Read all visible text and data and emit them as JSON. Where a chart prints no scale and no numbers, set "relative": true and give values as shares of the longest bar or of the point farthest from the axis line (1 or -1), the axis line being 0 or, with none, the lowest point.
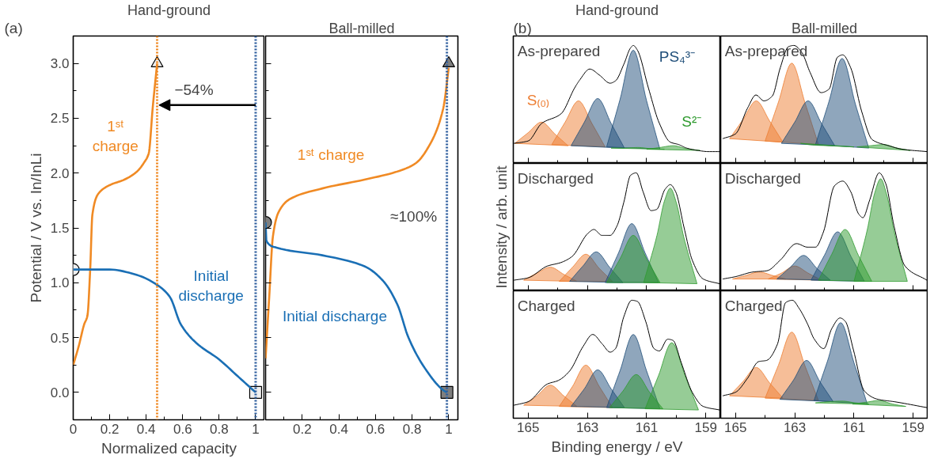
{
  "chart_data": [
    {
      "type": "line",
      "title": "Hand-ground",
      "xlabel": "Normalized capacity",
      "ylabel": "Potential / V vs. In/InLi",
      "xlim": [
        0,
        1.05
      ],
      "ylim": [
        -0.25,
        3.25
      ],
      "xticks": [
        0,
        0.2,
        0.4,
        0.6,
        0.8,
        1
      ],
      "yticks": [
        {
          "value": 0,
          "label": "0.0"
        },
        {
          "value": 0.5,
          "label": "0.5"
        },
        {
          "value": 1,
          "label": "1.0"
        },
        {
          "value": 1.5,
          "label": "1.5"
        },
        {
          "value": 2,
          "label": "2.0"
        },
        {
          "value": 2.5,
          "label": "2.5"
        },
        {
          "value": 3,
          "label": "3.0"
        }
      ],
      "annotations": [
        "(a)",
        "−54%"
      ],
      "ref_lines": [
        {
          "axis": "x",
          "value": 0.46,
          "color": "#f08a24",
          "line_style": "dotted"
        },
        {
          "axis": "x",
          "value": 1.0,
          "color": "#2e5e9e",
          "line_style": "dotted"
        }
      ],
      "series": [
        {
          "name": "1ˢᵗ charge",
          "color": "#f08a24",
          "x": [
            0,
            0.03,
            0.06,
            0.078,
            0.093,
            0.105,
            0.137,
            0.2,
            0.28,
            0.347,
            0.39,
            0.414,
            0.436,
            0.46
          ],
          "values": [
            0.25,
            0.42,
            0.62,
            0.7,
            1.12,
            1.62,
            1.81,
            1.89,
            1.94,
            2.01,
            2.1,
            2.18,
            2.6,
            3.0
          ]
        },
        {
          "name": "Initial discharge",
          "color": "#1a6fb5",
          "x": [
            0,
            0.03,
            0.2,
            0.35,
            0.46,
            0.53,
            0.59,
            0.675,
            0.8,
            0.9,
            1.0
          ],
          "values": [
            1.12,
            1.12,
            1.12,
            1.07,
            0.98,
            0.87,
            0.62,
            0.45,
            0.3,
            0.15,
            0.0
          ]
        },
        {
          "type": "scatter",
          "marker": "circle",
          "color": "#eeeeee",
          "x": [
            0
          ],
          "values": [
            1.12
          ]
        },
        {
          "type": "scatter",
          "marker": "triangle",
          "color": "#eeeeee",
          "x": [
            0.46
          ],
          "values": [
            3.0
          ]
        },
        {
          "type": "scatter",
          "marker": "square",
          "color": "#eeeeee",
          "x": [
            1.0
          ],
          "values": [
            0.0
          ]
        }
      ]
    },
    {
      "type": "line",
      "title": "Ball-milled",
      "xlim": [
        0,
        1.05
      ],
      "ylim": [
        -0.25,
        3.25
      ],
      "xticks": [
        {
          "value": 0,
          "label": null
        },
        0.2,
        0.4,
        0.6,
        0.8,
        1
      ],
      "yticks": [
        {
          "value": 0,
          "label": null
        },
        {
          "value": 0.5,
          "label": null
        },
        {
          "value": 1,
          "label": null
        },
        {
          "value": 1.5,
          "label": null
        },
        {
          "value": 2,
          "label": null
        },
        {
          "value": 2.5,
          "label": null
        },
        {
          "value": 3,
          "label": null
        }
      ],
      "tick_labels": "x",
      "annotations": [
        "≈100%"
      ],
      "ref_lines": [
        {
          "axis": "x",
          "value": 0.99,
          "color": "#2e5e9e",
          "line_style": "dotted"
        }
      ],
      "series": [
        {
          "name": "1ˢᵗ charge",
          "color": "#f08a24",
          "x": [
            0,
            0.02,
            0.04,
            0.07,
            0.13,
            0.31,
            0.54,
            0.73,
            0.82,
            0.9,
            0.97,
            1.0
          ],
          "values": [
            0.31,
            0.87,
            1.42,
            1.64,
            1.76,
            1.86,
            1.94,
            2.02,
            2.09,
            2.27,
            2.59,
            2.96
          ]
        },
        {
          "name": "Initial discharge",
          "color": "#1a6fb5",
          "x": [
            0,
            0.005,
            0.06,
            0.31,
            0.54,
            0.64,
            0.72,
            0.78,
            0.87,
            0.97,
            0.99
          ],
          "values": [
            1.55,
            1.38,
            1.32,
            1.25,
            1.15,
            1.02,
            0.8,
            0.5,
            0.22,
            0.02,
            0.0
          ]
        },
        {
          "type": "scatter",
          "marker": "circle",
          "color": "#7f7f7f",
          "x": [
            0
          ],
          "values": [
            1.55
          ]
        },
        {
          "type": "scatter",
          "marker": "triangle",
          "color": "#7f7f7f",
          "x": [
            1.0
          ],
          "values": [
            3.0
          ]
        },
        {
          "type": "scatter",
          "marker": "square",
          "color": "#7f7f7f",
          "x": [
            0.99
          ],
          "values": [
            0.0
          ]
        }
      ]
    },
    {
      "type": "area",
      "relative": true,
      "title": "As-prepared",
      "subtitle": "Hand-ground",
      "xlim": [
        165.5,
        158.5
      ],
      "xticks": [
        165,
        163,
        161,
        159
      ],
      "tick_labels": false,
      "annotations": [
        "(b)"
      ],
      "series": [
        {
          "type": "line",
          "color": "#000000",
          "x": [
            165.48,
            165,
            164.54,
            163.89,
            163.43,
            163.25,
            162.92,
            162.6,
            162.23,
            162.05,
            161.77,
            161.54,
            161.45,
            161.31,
            160.94,
            160.57,
            160.2,
            159.92,
            159.65,
            159.28,
            158.91,
            158.54
          ],
          "values": [
            0.17,
            0.19,
            0.34,
            0.42,
            0.64,
            0.71,
            0.8,
            0.75,
            0.68,
            0.7,
            0.84,
            0.98,
            1.0,
            0.96,
            0.64,
            0.34,
            0.18,
            0.16,
            0.13,
            0.11,
            0.1,
            0.1
          ]
        },
        {
          "name": "S₍₀₎",
          "color": "#ed7d31",
          "x": [
            165.45,
            165.0,
            164.55,
            164.1,
            163.65
          ],
          "values": [
            0.17,
            0.26,
            0.35,
            0.25,
            0.15
          ]
        },
        {
          "color": "#ed7d31",
          "x": [
            164.2,
            163.75,
            163.3,
            162.85,
            162.4
          ],
          "values": [
            0.16,
            0.35,
            0.53,
            0.34,
            0.14
          ]
        },
        {
          "color": "#1f4e79",
          "x": [
            163.55,
            163.1,
            162.65,
            162.2,
            161.75
          ],
          "values": [
            0.15,
            0.35,
            0.55,
            0.34,
            0.13
          ]
        },
        {
          "name": "PS₄³⁻",
          "color": "#1f4e79",
          "x": [
            162.35,
            161.9,
            161.45,
            161.0,
            160.55
          ],
          "values": [
            0.14,
            0.54,
            0.96,
            0.53,
            0.12
          ]
        },
        {
          "color": "#2e9a2e",
          "x": [
            162.2,
            161.75,
            161.3,
            160.85,
            160.4
          ],
          "values": [
            0.13,
            0.13,
            0.135,
            0.125,
            0.12
          ]
        },
        {
          "name": "S²⁻",
          "color": "#2e9a2e",
          "x": [
            161.0,
            160.55,
            160.1,
            159.65,
            159.2
          ],
          "values": [
            0.12,
            0.135,
            0.15,
            0.125,
            0.11
          ]
        }
      ]
    },
    {
      "type": "area",
      "relative": true,
      "title": "As-prepared",
      "subtitle": "Ball-milled",
      "xlim": [
        165.5,
        158.5
      ],
      "xticks": [
        165,
        163,
        161,
        159
      ],
      "tick_labels": false,
      "series": [
        {
          "type": "line",
          "color": "#000000",
          "x": [
            165.43,
            165.0,
            164.59,
            164.31,
            164.04,
            163.76,
            163.49,
            163.21,
            163.03,
            162.76,
            162.48,
            162.11,
            161.84,
            161.56,
            161.38,
            161.11,
            160.74,
            160.38,
            159.83,
            159.37,
            158.54
          ],
          "values": [
            0.21,
            0.25,
            0.47,
            0.58,
            0.53,
            0.57,
            0.81,
            0.99,
            1.0,
            0.94,
            0.77,
            0.6,
            0.63,
            0.9,
            0.92,
            0.81,
            0.44,
            0.2,
            0.15,
            0.12,
            0.1
          ]
        },
        {
          "color": "#ed7d31",
          "x": [
            165.2,
            164.75,
            164.3,
            163.85,
            163.4
          ],
          "values": [
            0.21,
            0.37,
            0.53,
            0.36,
            0.18
          ]
        },
        {
          "color": "#ed7d31",
          "x": [
            164.0,
            163.55,
            163.1,
            162.65,
            162.2
          ],
          "values": [
            0.19,
            0.52,
            0.85,
            0.51,
            0.16
          ]
        },
        {
          "color": "#1f4e79",
          "x": [
            163.45,
            163.0,
            162.55,
            162.1,
            161.65
          ],
          "values": [
            0.17,
            0.35,
            0.53,
            0.34,
            0.15
          ]
        },
        {
          "color": "#1f4e79",
          "x": [
            162.3,
            161.85,
            161.4,
            160.95,
            160.5
          ],
          "values": [
            0.16,
            0.52,
            0.89,
            0.5,
            0.13
          ]
        },
        {
          "color": "#2e9a2e",
          "x": [
            162.8,
            162.35,
            161.9,
            161.45,
            161.0
          ],
          "values": [
            0.17,
            0.155,
            0.15,
            0.145,
            0.14
          ]
        },
        {
          "color": "#2e9a2e",
          "x": [
            160.9,
            160.45,
            160.0,
            159.55,
            159.1
          ],
          "values": [
            0.14,
            0.15,
            0.16,
            0.13,
            0.11
          ]
        }
      ]
    },
    {
      "type": "area",
      "relative": true,
      "title": "Discharged",
      "ylabel": "Intensity / arb. unit",
      "xlim": [
        165.5,
        158.5
      ],
      "xticks": [
        165,
        163,
        161,
        159
      ],
      "tick_labels": false,
      "series": [
        {
          "type": "line",
          "color": "#000000",
          "x": [
            165.48,
            165,
            164.35,
            163.89,
            163.52,
            162.97,
            162.78,
            162.51,
            162.23,
            162.0,
            161.77,
            161.54,
            161.35,
            161.12,
            160.85,
            160.66,
            160.38,
            160.2,
            160.02,
            159.74,
            159.46,
            159.09,
            158.54
          ],
          "values": [
            0.09,
            0.11,
            0.21,
            0.24,
            0.29,
            0.49,
            0.52,
            0.47,
            0.47,
            0.55,
            0.75,
            0.98,
            1.0,
            0.84,
            0.68,
            0.69,
            0.86,
            0.9,
            0.84,
            0.54,
            0.26,
            0.1,
            0.06
          ]
        },
        {
          "color": "#ed7d31",
          "x": [
            165.15,
            164.7,
            164.25,
            163.8,
            163.35
          ],
          "values": [
            0.09,
            0.15,
            0.2,
            0.14,
            0.08
          ]
        },
        {
          "color": "#ed7d31",
          "x": [
            163.95,
            163.5,
            163.05,
            162.6,
            162.15
          ],
          "values": [
            0.08,
            0.2,
            0.31,
            0.19,
            0.08
          ]
        },
        {
          "color": "#1f4e79",
          "x": [
            163.6,
            163.15,
            162.7,
            162.25,
            161.8
          ],
          "values": [
            0.08,
            0.21,
            0.33,
            0.2,
            0.07
          ]
        },
        {
          "color": "#1f4e79",
          "x": [
            162.4,
            161.95,
            161.5,
            161.05,
            160.6
          ],
          "values": [
            0.07,
            0.32,
            0.57,
            0.32,
            0.07
          ]
        },
        {
          "color": "#2e9a2e",
          "x": [
            162.35,
            161.9,
            161.45,
            161.0,
            160.55
          ],
          "values": [
            0.07,
            0.27,
            0.47,
            0.27,
            0.07
          ]
        },
        {
          "color": "#2e9a2e",
          "x": [
            161.1,
            160.65,
            160.4,
            160.2,
            160.0,
            159.75,
            159.3
          ],
          "values": [
            0.07,
            0.47,
            0.76,
            0.87,
            0.75,
            0.46,
            0.06
          ]
        }
      ]
    },
    {
      "type": "area",
      "relative": true,
      "title": "Discharged",
      "xlim": [
        165.5,
        158.5
      ],
      "xticks": [
        165,
        163,
        161,
        159
      ],
      "tick_labels": false,
      "series": [
        {
          "type": "line",
          "color": "#000000",
          "x": [
            165.43,
            165,
            164.4,
            163.94,
            163.49,
            162.94,
            162.57,
            162.3,
            162.03,
            161.66,
            161.38,
            161.11,
            160.84,
            160.7,
            160.47,
            160.15,
            159.93,
            159.65,
            159.28,
            158.54
          ],
          "values": [
            0.1,
            0.12,
            0.16,
            0.17,
            0.26,
            0.4,
            0.37,
            0.37,
            0.5,
            0.89,
            0.93,
            0.84,
            0.65,
            0.62,
            0.77,
            1.0,
            0.91,
            0.55,
            0.21,
            0.09
          ]
        },
        {
          "color": "#ed7d31",
          "x": [
            165.1,
            164.65,
            164.2,
            163.75,
            163.3
          ],
          "values": [
            0.1,
            0.13,
            0.16,
            0.13,
            0.1
          ]
        },
        {
          "color": "#ed7d31",
          "x": [
            163.9,
            163.45,
            163.0,
            162.55,
            162.1
          ],
          "values": [
            0.1,
            0.15,
            0.21,
            0.15,
            0.09
          ]
        },
        {
          "color": "#1f4e79",
          "x": [
            163.6,
            163.15,
            162.7,
            162.25,
            161.8
          ],
          "values": [
            0.1,
            0.2,
            0.3,
            0.19,
            0.09
          ]
        },
        {
          "color": "#1f4e79",
          "x": [
            162.45,
            162.0,
            161.55,
            161.1,
            160.65
          ],
          "values": [
            0.09,
            0.3,
            0.5,
            0.29,
            0.08
          ]
        },
        {
          "color": "#2e9a2e",
          "x": [
            162.2,
            161.75,
            161.3,
            160.85,
            160.4
          ],
          "values": [
            0.09,
            0.31,
            0.52,
            0.3,
            0.08
          ]
        },
        {
          "color": "#2e9a2e",
          "x": [
            161.0,
            160.55,
            160.3,
            160.1,
            159.9,
            159.65,
            159.2
          ],
          "values": [
            0.08,
            0.52,
            0.83,
            0.95,
            0.82,
            0.51,
            0.08
          ]
        }
      ]
    },
    {
      "type": "area",
      "relative": true,
      "title": "Charged",
      "xlabel": "Binding energy / eV",
      "xlim": [
        165.5,
        158.5
      ],
      "xticks": [
        165,
        163,
        161,
        159
      ],
      "tick_labels": "x",
      "series": [
        {
          "type": "line",
          "color": "#000000",
          "x": [
            165.48,
            165,
            164.35,
            163.98,
            163.6,
            163.14,
            162.82,
            162.5,
            162.23,
            162.05,
            161.77,
            161.5,
            161.31,
            161.03,
            160.75,
            160.57,
            160.29,
            160.11,
            159.83,
            159.46,
            159.09,
            158.54
          ],
          "values": [
            0.11,
            0.14,
            0.29,
            0.32,
            0.4,
            0.61,
            0.71,
            0.63,
            0.56,
            0.59,
            0.86,
            1.0,
            0.99,
            0.82,
            0.59,
            0.57,
            0.67,
            0.66,
            0.47,
            0.22,
            0.1,
            0.07
          ]
        },
        {
          "color": "#ed7d31",
          "x": [
            165.15,
            164.7,
            164.25,
            163.8,
            163.35
          ],
          "values": [
            0.11,
            0.19,
            0.28,
            0.19,
            0.1
          ]
        },
        {
          "color": "#ed7d31",
          "x": [
            163.95,
            163.5,
            163.05,
            162.6,
            162.15
          ],
          "values": [
            0.1,
            0.27,
            0.45,
            0.27,
            0.09
          ]
        },
        {
          "color": "#1f4e79",
          "x": [
            163.55,
            163.1,
            162.65,
            162.2,
            161.75
          ],
          "values": [
            0.1,
            0.25,
            0.41,
            0.25,
            0.09
          ]
        },
        {
          "color": "#1f4e79",
          "x": [
            162.35,
            161.9,
            161.45,
            161.0,
            160.55
          ],
          "values": [
            0.09,
            0.4,
            0.71,
            0.4,
            0.08
          ]
        },
        {
          "color": "#2e9a2e",
          "x": [
            162.25,
            161.8,
            161.35,
            160.9,
            160.45
          ],
          "values": [
            0.09,
            0.23,
            0.37,
            0.22,
            0.08
          ]
        },
        {
          "color": "#2e9a2e",
          "x": [
            161.05,
            160.6,
            160.15,
            159.7,
            159.25
          ],
          "values": [
            0.08,
            0.36,
            0.64,
            0.36,
            0.07
          ]
        }
      ]
    },
    {
      "type": "area",
      "relative": true,
      "title": "Charged",
      "xlim": [
        165.5,
        158.5
      ],
      "xticks": [
        165,
        163,
        161,
        159
      ],
      "tick_labels": "x",
      "series": [
        {
          "type": "line",
          "color": "#000000",
          "x": [
            165.43,
            165,
            164.59,
            164.22,
            163.95,
            163.58,
            163.31,
            163.08,
            162.85,
            162.57,
            162.34,
            162.02,
            161.75,
            161.47,
            161.29,
            161.02,
            160.65,
            160.19,
            159.64,
            158.54
          ],
          "values": [
            0.19,
            0.22,
            0.34,
            0.48,
            0.49,
            0.63,
            0.98,
            1.0,
            0.93,
            0.8,
            0.67,
            0.59,
            0.76,
            0.85,
            0.82,
            0.58,
            0.23,
            0.16,
            0.14,
            0.09
          ]
        },
        {
          "color": "#ed7d31",
          "x": [
            165.2,
            164.75,
            164.3,
            163.85,
            163.4
          ],
          "values": [
            0.19,
            0.31,
            0.43,
            0.3,
            0.17
          ]
        },
        {
          "color": "#ed7d31",
          "x": [
            164.0,
            163.55,
            163.1,
            162.65,
            162.2
          ],
          "values": [
            0.17,
            0.45,
            0.73,
            0.44,
            0.15
          ]
        },
        {
          "color": "#1f4e79",
          "x": [
            163.5,
            163.05,
            162.6,
            162.15,
            161.7
          ],
          "values": [
            0.16,
            0.32,
            0.49,
            0.31,
            0.14
          ]
        },
        {
          "color": "#1f4e79",
          "x": [
            162.35,
            161.9,
            161.45,
            161.0,
            160.55
          ],
          "values": [
            0.15,
            0.48,
            0.81,
            0.47,
            0.12
          ]
        },
        {
          "color": "#2e9a2e",
          "x": [
            162.3,
            161.85,
            161.4,
            160.95,
            160.5
          ],
          "values": [
            0.13,
            0.14,
            0.145,
            0.13,
            0.12
          ]
        },
        {
          "color": "#2e9a2e",
          "x": [
            161.05,
            160.6,
            160.15,
            159.7,
            159.25
          ],
          "values": [
            0.12,
            0.135,
            0.15,
            0.12,
            0.1
          ]
        }
      ]
    }
  ]
}
